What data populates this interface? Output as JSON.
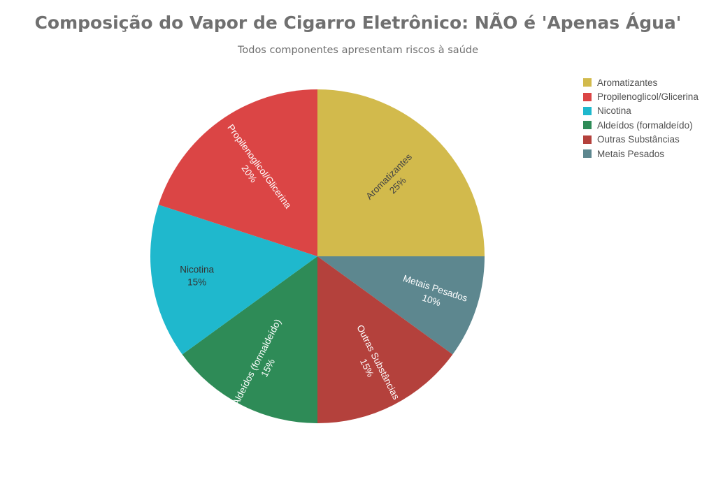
{
  "title": "Composição do Vapor de Cigarro Eletrônico: NÃO é 'Apenas Água'",
  "subtitle": "Todos componentes apresentam riscos à saúde",
  "chart_data": {
    "type": "pie",
    "title": "Composição do Vapor de Cigarro Eletrônico: NÃO é 'Apenas Água'",
    "subtitle": "Todos componentes apresentam riscos à saúde",
    "legend_position": "top-right",
    "start_angle": "12 o'clock",
    "direction": "clockwise",
    "slices": [
      {
        "label": "Aromatizantes",
        "value": 25,
        "percent_label": "25%",
        "color": "#D2BA4C",
        "text_color": "#444444"
      },
      {
        "label": "Metais Pesados",
        "value": 10,
        "percent_label": "10%",
        "color": "#5D878F",
        "text_color": "#ffffff"
      },
      {
        "label": "Outras Substâncias",
        "value": 15,
        "percent_label": "15%",
        "color": "#B4413C",
        "text_color": "#ffffff"
      },
      {
        "label": "Aldeídos (formaldeído)",
        "value": 15,
        "percent_label": "15%",
        "color": "#2E8B57",
        "text_color": "#ffffff"
      },
      {
        "label": "Nicotina",
        "value": 15,
        "percent_label": "15%",
        "color": "#1FB8CD",
        "text_color": "#333333"
      },
      {
        "label": "Propilenoglicol/Glicerina",
        "value": 20,
        "percent_label": "20%",
        "color": "#DB4545",
        "text_color": "#ffffff"
      }
    ],
    "legend": [
      {
        "label": "Aromatizantes",
        "color": "#D2BA4C"
      },
      {
        "label": "Propilenoglicol/Glicerina",
        "color": "#DB4545"
      },
      {
        "label": "Nicotina",
        "color": "#1FB8CD"
      },
      {
        "label": "Aldeídos (formaldeído)",
        "color": "#2E8B57"
      },
      {
        "label": "Outras Substâncias",
        "color": "#B4413C"
      },
      {
        "label": "Metais Pesados",
        "color": "#5D878F"
      }
    ]
  }
}
